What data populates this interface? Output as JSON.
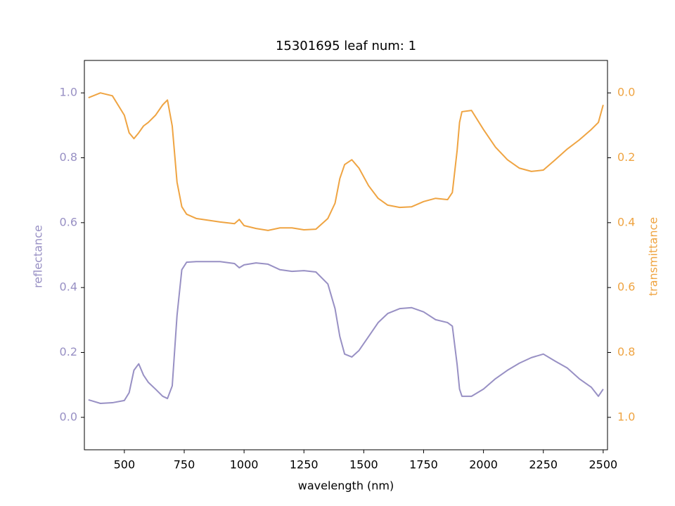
{
  "chart_data": {
    "type": "line",
    "title": "15301695 leaf num: 1",
    "xlabel": "wavelength (nm)",
    "ylabel": "reflectance",
    "y2label": "transmittance",
    "x": [
      350,
      400,
      450,
      500,
      520,
      540,
      560,
      580,
      600,
      630,
      660,
      680,
      700,
      720,
      740,
      760,
      800,
      900,
      960,
      980,
      1000,
      1050,
      1100,
      1150,
      1200,
      1250,
      1300,
      1350,
      1380,
      1400,
      1420,
      1450,
      1480,
      1520,
      1560,
      1600,
      1650,
      1700,
      1750,
      1800,
      1850,
      1870,
      1890,
      1900,
      1910,
      1950,
      2000,
      2050,
      2100,
      2150,
      2200,
      2250,
      2300,
      2350,
      2400,
      2450,
      2480,
      2500
    ],
    "series": [
      {
        "name": "reflectance",
        "color": "#9890c4",
        "axis": "y",
        "values": [
          0.054,
          0.043,
          0.045,
          0.052,
          0.076,
          0.145,
          0.165,
          0.13,
          0.108,
          0.087,
          0.065,
          0.058,
          0.097,
          0.314,
          0.455,
          0.478,
          0.48,
          0.48,
          0.474,
          0.461,
          0.47,
          0.476,
          0.472,
          0.455,
          0.45,
          0.452,
          0.448,
          0.411,
          0.335,
          0.249,
          0.195,
          0.186,
          0.206,
          0.249,
          0.292,
          0.32,
          0.335,
          0.338,
          0.325,
          0.301,
          0.292,
          0.281,
          0.162,
          0.087,
          0.065,
          0.065,
          0.087,
          0.119,
          0.145,
          0.167,
          0.184,
          0.195,
          0.173,
          0.152,
          0.119,
          0.093,
          0.065,
          0.087
        ]
      },
      {
        "name": "transmittance",
        "color": "#efa442",
        "axis": "y2",
        "values": [
          0.015,
          0.0,
          0.009,
          0.069,
          0.123,
          0.141,
          0.123,
          0.102,
          0.091,
          0.069,
          0.037,
          0.022,
          0.102,
          0.275,
          0.351,
          0.374,
          0.387,
          0.398,
          0.403,
          0.39,
          0.409,
          0.418,
          0.424,
          0.416,
          0.416,
          0.422,
          0.42,
          0.387,
          0.34,
          0.264,
          0.221,
          0.206,
          0.232,
          0.286,
          0.325,
          0.346,
          0.353,
          0.351,
          0.335,
          0.325,
          0.329,
          0.307,
          0.177,
          0.091,
          0.058,
          0.054,
          0.113,
          0.167,
          0.206,
          0.232,
          0.242,
          0.238,
          0.206,
          0.173,
          0.145,
          0.113,
          0.091,
          0.037
        ]
      }
    ],
    "xlim": [
      333,
      2518
    ],
    "xticks": [
      500,
      750,
      1000,
      1250,
      1500,
      1750,
      2000,
      2250,
      2500
    ],
    "ylim": [
      -0.1,
      1.1
    ],
    "yticks": [
      {
        "value": 0,
        "label": "0.0"
      },
      {
        "value": 0.2,
        "label": "0.2"
      },
      {
        "value": 0.4,
        "label": "0.4"
      },
      {
        "value": 0.6,
        "label": "0.6"
      },
      {
        "value": 0.8,
        "label": "0.8"
      },
      {
        "value": 1,
        "label": "1.0"
      }
    ],
    "y2lim": [
      1.1,
      -0.1
    ],
    "y2ticks": [
      {
        "value": 0,
        "label": "0.0"
      },
      {
        "value": 0.2,
        "label": "0.2"
      },
      {
        "value": 0.4,
        "label": "0.4"
      },
      {
        "value": 0.6,
        "label": "0.6"
      },
      {
        "value": 0.8,
        "label": "0.8"
      },
      {
        "value": 1,
        "label": "1.0"
      }
    ],
    "grid": false
  }
}
